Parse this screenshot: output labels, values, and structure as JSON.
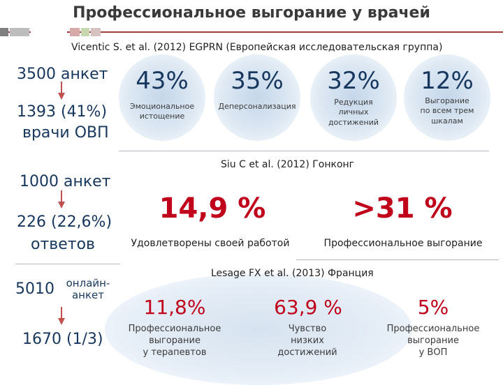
{
  "title": "Профессиональное выгорание у врачей",
  "colors": {
    "accent": "#a13a3a",
    "navy": "#17375e",
    "red": "#c0001a",
    "arrow": "#c0504d",
    "deco_squares": [
      "#7f7f7f",
      "#bdbdbd",
      "#d8a9a9",
      "#c7d7b0",
      "#ffffff",
      "#d7c2c2"
    ]
  },
  "section1": {
    "source": "Vicentic S. et al. (2012) EGPRN (Европейская исследовательская группа)",
    "left_top": "3500 анкет",
    "left_bottom_line1": "1393 (41%)",
    "left_bottom_line2": "врачи ОВП",
    "stats": [
      {
        "value": "43%",
        "label_lines": [
          "Эмоциональное",
          "истощение"
        ]
      },
      {
        "value": "35%",
        "label_lines": [
          "Деперсонализация"
        ]
      },
      {
        "value": "32%",
        "label_lines": [
          "Редукция",
          "личных",
          "достижений"
        ]
      },
      {
        "value": "12%",
        "label_lines": [
          "Выгорание",
          "по всем трем",
          "шкалам"
        ]
      }
    ]
  },
  "section2": {
    "source": "Siu C et al. (2012) Гонконг",
    "left_top": "1000 анкет",
    "left_bottom_line1": "226 (22,6%)",
    "left_bottom_line2": "ответов",
    "stats": [
      {
        "value": "14,9 %",
        "label": "Удовлетворены своей работой"
      },
      {
        "value": ">31 %",
        "label": "Профессиональное выгорание"
      }
    ]
  },
  "section3": {
    "source": "Lesage FX et al. (2013) Франция",
    "left_top": "5010",
    "left_top_note_line1": "онлайн-",
    "left_top_note_line2": "анкет",
    "left_bottom": "1670 (1/3)",
    "stats": [
      {
        "value": "11,8%",
        "label_lines": [
          "Профессиональное",
          "выгорание",
          "у терапевтов"
        ]
      },
      {
        "value": "63,9 %",
        "label_lines": [
          "Чувство",
          "низких",
          "достижений"
        ]
      },
      {
        "value": "5%",
        "label_lines": [
          "Профессиональное",
          "выгорание",
          "у ВОП"
        ]
      }
    ]
  }
}
